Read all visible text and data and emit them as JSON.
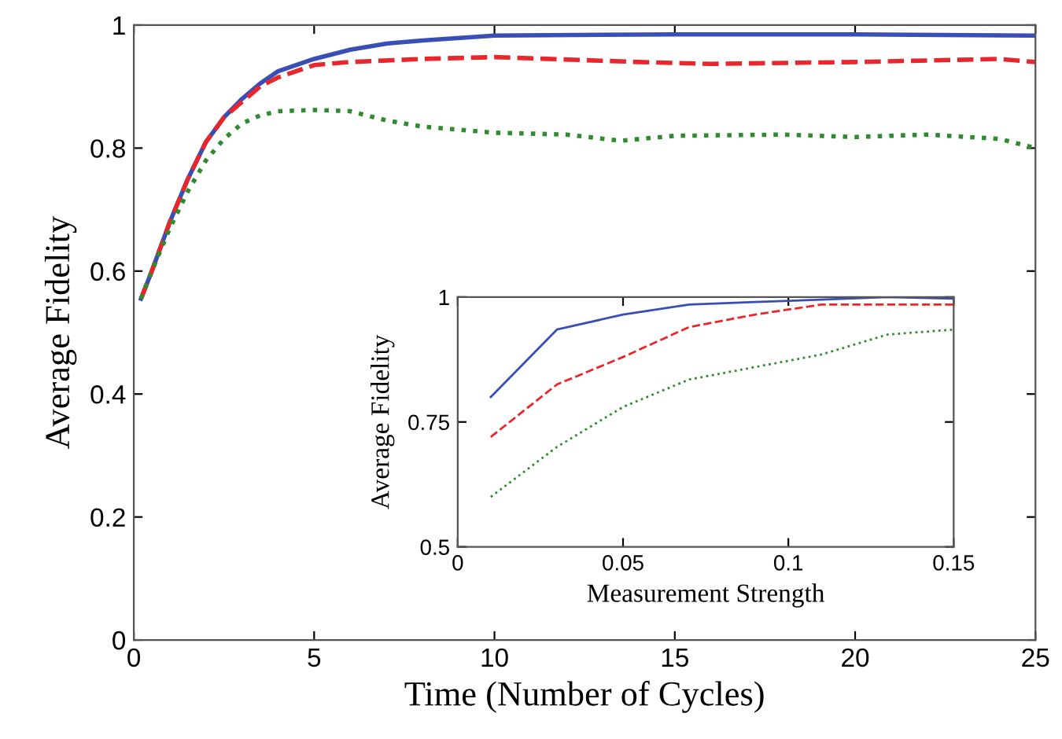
{
  "chart_data": [
    {
      "type": "line",
      "xlabel": "Time (Number of Cycles)",
      "ylabel": "Average Fidelity",
      "xlim": [
        0,
        25
      ],
      "ylim": [
        0,
        1
      ],
      "xticks": [
        0,
        5,
        10,
        15,
        20,
        25
      ],
      "yticks": [
        0,
        0.2,
        0.4,
        0.6,
        0.8,
        1
      ],
      "series": [
        {
          "color": "#3a4fb5",
          "line_style": "solid",
          "x": [
            0.2,
            0.5,
            1,
            1.5,
            2,
            2.5,
            3,
            3.5,
            4,
            5,
            6,
            7,
            8,
            10,
            15,
            20,
            25
          ],
          "values": [
            0.555,
            0.6,
            0.68,
            0.75,
            0.81,
            0.85,
            0.88,
            0.905,
            0.925,
            0.945,
            0.96,
            0.97,
            0.975,
            0.983,
            0.985,
            0.985,
            0.983
          ]
        },
        {
          "color": "#e8262b",
          "line_style": "dashed",
          "x": [
            0.2,
            0.5,
            1,
            1.5,
            2,
            2.5,
            3,
            3.5,
            4,
            5,
            6,
            8,
            10,
            14,
            16,
            20,
            24,
            25
          ],
          "values": [
            0.555,
            0.6,
            0.68,
            0.75,
            0.81,
            0.85,
            0.875,
            0.9,
            0.915,
            0.935,
            0.94,
            0.945,
            0.948,
            0.94,
            0.937,
            0.94,
            0.945,
            0.94
          ]
        },
        {
          "color": "#2e8b2e",
          "line_style": "dotted",
          "x": [
            0.2,
            0.5,
            1,
            1.5,
            2,
            2.5,
            3,
            3.5,
            4,
            5,
            6,
            7,
            8,
            10,
            12,
            13.5,
            15,
            18,
            20,
            22,
            24,
            25
          ],
          "values": [
            0.555,
            0.6,
            0.67,
            0.73,
            0.78,
            0.815,
            0.84,
            0.853,
            0.86,
            0.862,
            0.86,
            0.845,
            0.835,
            0.825,
            0.822,
            0.812,
            0.82,
            0.822,
            0.818,
            0.822,
            0.815,
            0.8
          ]
        }
      ]
    },
    {
      "type": "line",
      "xlabel": "Measurement Strength",
      "ylabel": "Average Fidelity",
      "xlim": [
        0,
        0.15
      ],
      "ylim": [
        0.5,
        1
      ],
      "xticks": [
        0,
        0.05,
        0.1,
        0.15
      ],
      "yticks": [
        0.5,
        0.75,
        1
      ],
      "series": [
        {
          "color": "#3a4fb5",
          "line_style": "solid",
          "x": [
            0.01,
            0.03,
            0.05,
            0.07,
            0.09,
            0.11,
            0.13,
            0.15
          ],
          "values": [
            0.8,
            0.935,
            0.965,
            0.985,
            0.99,
            0.995,
            1.0,
            0.997
          ]
        },
        {
          "color": "#e8262b",
          "line_style": "dashed",
          "x": [
            0.01,
            0.03,
            0.05,
            0.07,
            0.09,
            0.11,
            0.13,
            0.15
          ],
          "values": [
            0.72,
            0.825,
            0.88,
            0.94,
            0.965,
            0.985,
            0.985,
            0.985
          ]
        },
        {
          "color": "#2e8b2e",
          "line_style": "dotted",
          "x": [
            0.01,
            0.03,
            0.05,
            0.07,
            0.09,
            0.11,
            0.13,
            0.15
          ],
          "values": [
            0.6,
            0.7,
            0.78,
            0.835,
            0.86,
            0.885,
            0.925,
            0.935
          ]
        }
      ]
    }
  ]
}
